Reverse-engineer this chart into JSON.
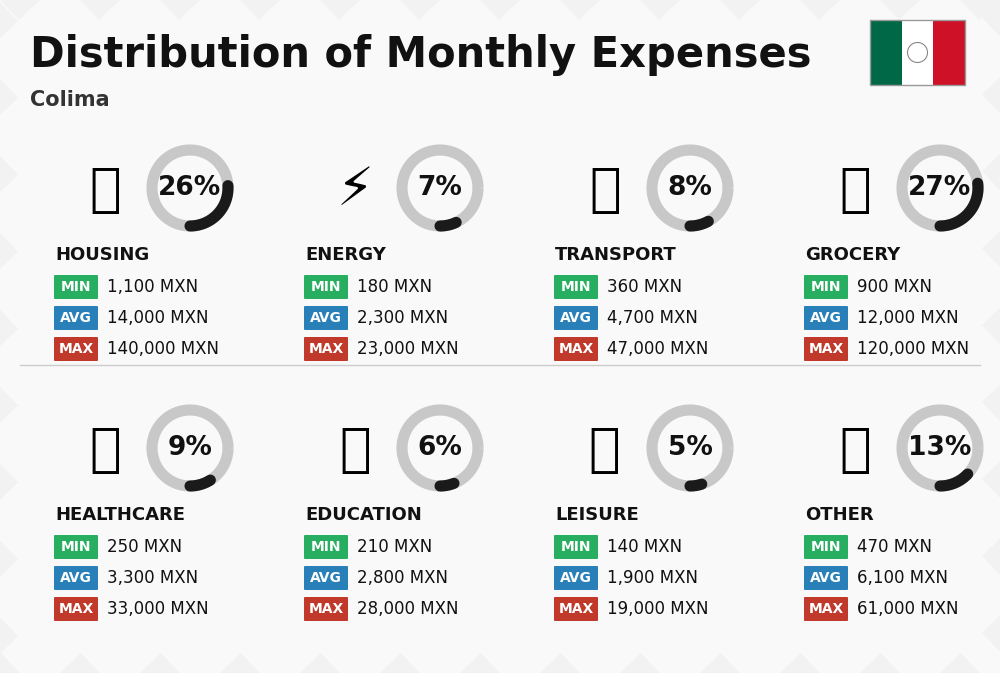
{
  "title": "Distribution of Monthly Expenses",
  "subtitle": "Colima",
  "background_color": "#f2f2f2",
  "categories": [
    {
      "name": "HOUSING",
      "percent": 26,
      "min": "1,100 MXN",
      "avg": "14,000 MXN",
      "max": "140,000 MXN",
      "row": 0,
      "col": 0
    },
    {
      "name": "ENERGY",
      "percent": 7,
      "min": "180 MXN",
      "avg": "2,300 MXN",
      "max": "23,000 MXN",
      "row": 0,
      "col": 1
    },
    {
      "name": "TRANSPORT",
      "percent": 8,
      "min": "360 MXN",
      "avg": "4,700 MXN",
      "max": "47,000 MXN",
      "row": 0,
      "col": 2
    },
    {
      "name": "GROCERY",
      "percent": 27,
      "min": "900 MXN",
      "avg": "12,000 MXN",
      "max": "120,000 MXN",
      "row": 0,
      "col": 3
    },
    {
      "name": "HEALTHCARE",
      "percent": 9,
      "min": "250 MXN",
      "avg": "3,300 MXN",
      "max": "33,000 MXN",
      "row": 1,
      "col": 0
    },
    {
      "name": "EDUCATION",
      "percent": 6,
      "min": "210 MXN",
      "avg": "2,800 MXN",
      "max": "28,000 MXN",
      "row": 1,
      "col": 1
    },
    {
      "name": "LEISURE",
      "percent": 5,
      "min": "140 MXN",
      "avg": "1,900 MXN",
      "max": "19,000 MXN",
      "row": 1,
      "col": 2
    },
    {
      "name": "OTHER",
      "percent": 13,
      "min": "470 MXN",
      "avg": "6,100 MXN",
      "max": "61,000 MXN",
      "row": 1,
      "col": 3
    }
  ],
  "color_min": "#27ae60",
  "color_avg": "#2980b9",
  "color_max": "#c0392b",
  "arc_color_filled": "#1a1a1a",
  "arc_color_bg": "#c8c8c8",
  "title_fontsize": 30,
  "subtitle_fontsize": 15,
  "label_fontsize": 10,
  "value_fontsize": 12,
  "percent_fontsize": 19,
  "category_fontsize": 13,
  "stripe_color": "#e8e8e8",
  "divider_color": "#cccccc",
  "flag_green": "#006847",
  "flag_white": "#ffffff",
  "flag_red": "#ce1126"
}
